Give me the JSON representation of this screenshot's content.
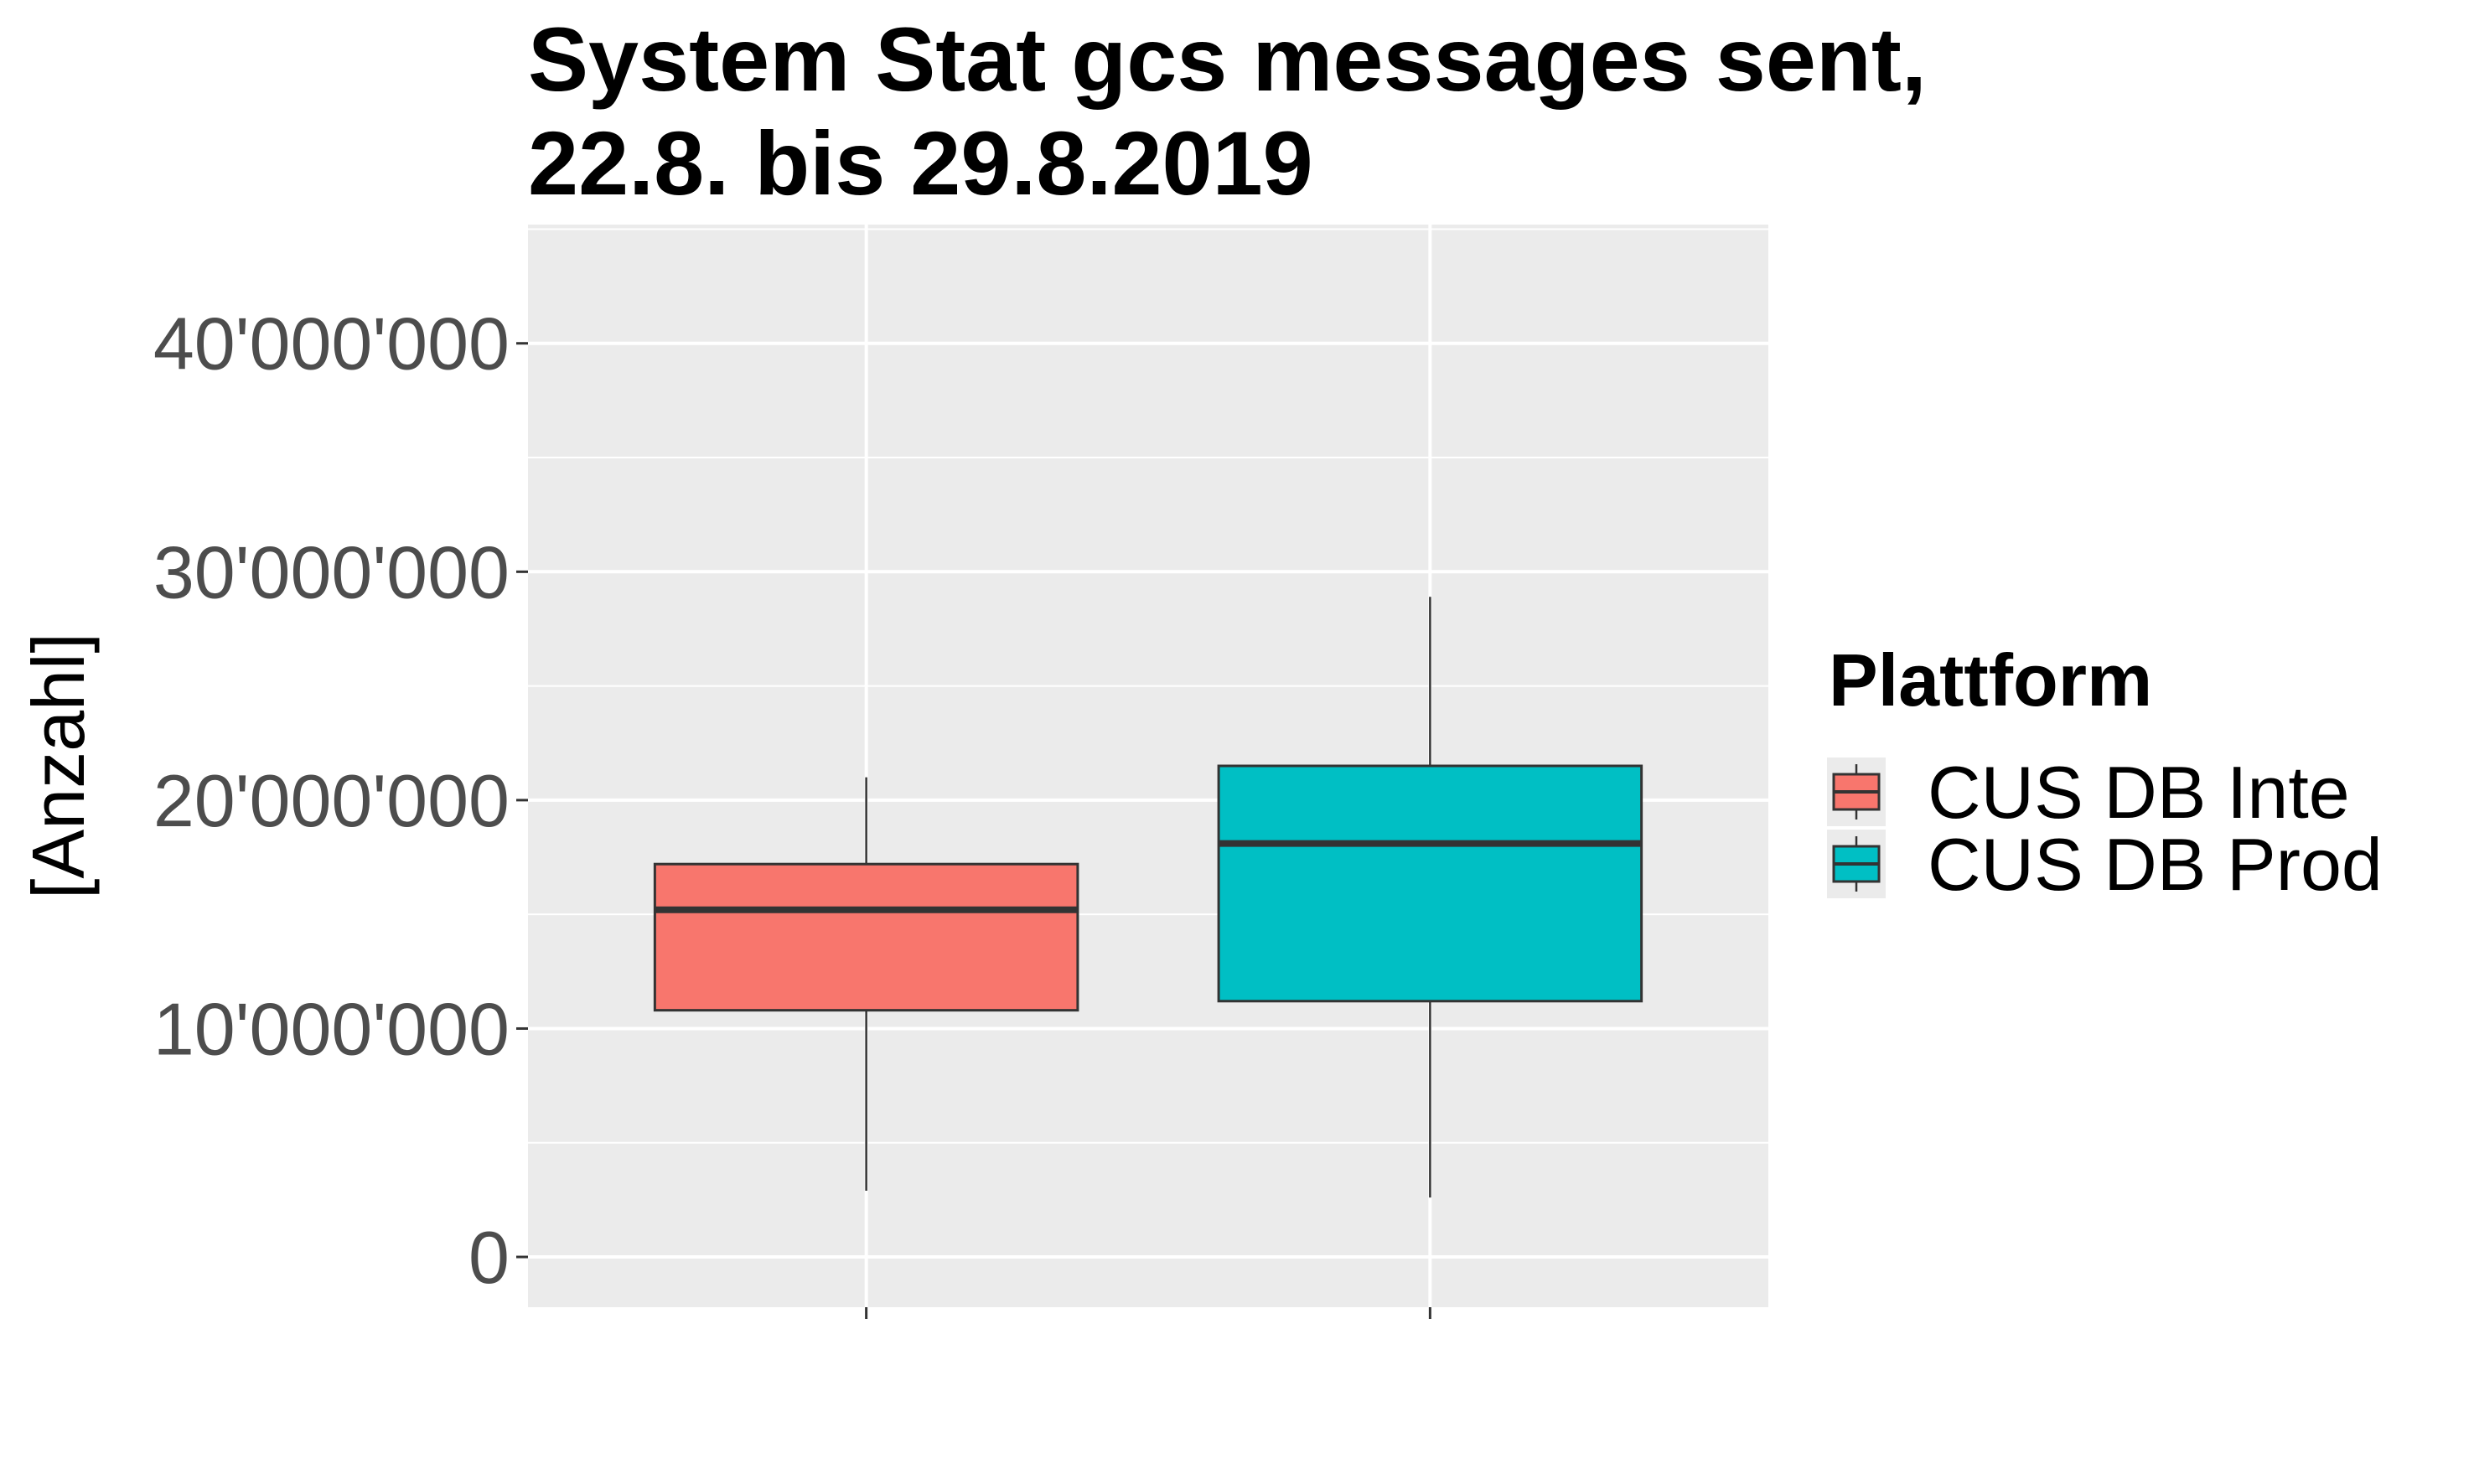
{
  "chart_data": {
    "type": "boxplot",
    "title_lines": [
      "System Stat gcs messages sent,",
      "22.8. bis 29.8.2019"
    ],
    "xlabel": "",
    "ylabel": "[Anzahl]",
    "ylim": [
      -2200000,
      45200000
    ],
    "yticks": [
      0,
      10000000,
      20000000,
      30000000,
      40000000
    ],
    "ytick_labels": [
      "0",
      "10'000'000",
      "20'000'000",
      "30'000'000",
      "40'000'000"
    ],
    "grid": true,
    "legend": {
      "title": "Plattform",
      "placement": "right",
      "entries": [
        "CUS DB Inte",
        "CUS DB Prod"
      ]
    },
    "series": [
      {
        "name": "CUS DB Inte",
        "color": "#F8766D",
        "min": 2900000,
        "q1": 10800000,
        "median": 15200000,
        "q3": 17200000,
        "max": 21000000
      },
      {
        "name": "CUS DB Prod",
        "color": "#00BFC4",
        "min": 2600000,
        "q1": 11200000,
        "median": 18100000,
        "q3": 21500000,
        "max": 28900000
      }
    ],
    "colors": {
      "panel": "#EBEBEB",
      "grid": "#FFFFFF",
      "tick": "#333333",
      "outline": "#333333"
    }
  }
}
